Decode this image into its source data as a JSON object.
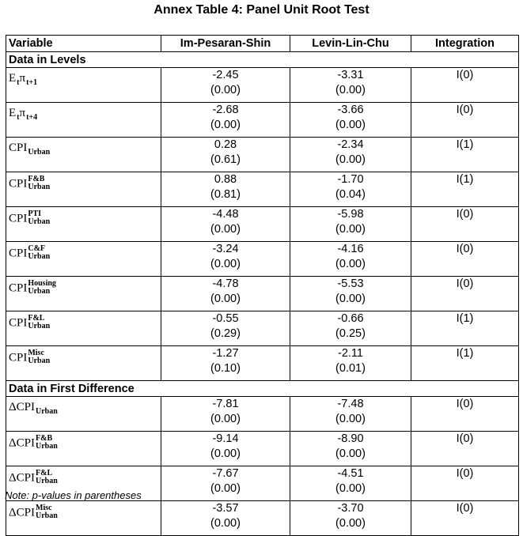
{
  "title": "Annex Table 4: Panel Unit Root Test",
  "table": {
    "columns": [
      "Variable",
      "Im-Pesaran-Shin",
      "Levin-Lin-Chu",
      "Integration"
    ],
    "sections": [
      {
        "label": "Data in Levels",
        "rows": [
          {
            "variable": [
              {
                "text": "E",
                "sub": "t"
              },
              {
                "text": "π",
                "sub": "t+1"
              }
            ],
            "ips": [
              "-2.45",
              "(0.00)"
            ],
            "llc": [
              "-3.31",
              "(0.00)"
            ],
            "integration": "I(0)"
          },
          {
            "variable": [
              {
                "text": "E",
                "sub": "t"
              },
              {
                "text": "π",
                "sub": "t+4"
              }
            ],
            "ips": [
              "-2.68",
              "(0.00)"
            ],
            "llc": [
              "-3.66",
              "(0.00)"
            ],
            "integration": "I(0)"
          },
          {
            "variable": [
              {
                "text": "CPI",
                "sub": "Urban"
              }
            ],
            "ips": [
              "0.28",
              "(0.61)"
            ],
            "llc": [
              "-2.34",
              "(0.00)"
            ],
            "integration": "I(1)"
          },
          {
            "variable": [
              {
                "text": "CPI",
                "sup": "F&B",
                "sub": "Urban"
              }
            ],
            "ips": [
              "0.88",
              "(0.81)"
            ],
            "llc": [
              "-1.70",
              "(0.04)"
            ],
            "integration": "I(1)"
          },
          {
            "variable": [
              {
                "text": "CPI",
                "sup": "PTI",
                "sub": "Urban"
              }
            ],
            "ips": [
              "-4.48",
              "(0.00)"
            ],
            "llc": [
              "-5.98",
              "(0.00)"
            ],
            "integration": "I(0)"
          },
          {
            "variable": [
              {
                "text": "CPI",
                "sup": "C&F",
                "sub": "Urban"
              }
            ],
            "ips": [
              "-3.24",
              "(0.00)"
            ],
            "llc": [
              "-4.16",
              "(0.00)"
            ],
            "integration": "I(0)"
          },
          {
            "variable": [
              {
                "text": "CPI",
                "sup": "Housing",
                "sub": "Urban"
              }
            ],
            "ips": [
              "-4.78",
              "(0.00)"
            ],
            "llc": [
              "-5.53",
              "(0.00)"
            ],
            "integration": "I(0)"
          },
          {
            "variable": [
              {
                "text": "CPI",
                "sup": "F&L",
                "sub": "Urban"
              }
            ],
            "ips": [
              "-0.55",
              "(0.29)"
            ],
            "llc": [
              "-0.66",
              "(0.25)"
            ],
            "integration": "I(1)"
          },
          {
            "variable": [
              {
                "text": "CPI",
                "sup": "Misc",
                "sub": "Urban"
              }
            ],
            "ips": [
              "-1.27",
              "(0.10)"
            ],
            "llc": [
              "-2.11",
              "(0.01)"
            ],
            "integration": "I(1)"
          }
        ]
      },
      {
        "label": "Data in First Difference",
        "rows": [
          {
            "variable": [
              {
                "text": "ΔCPI",
                "sub": "Urban"
              }
            ],
            "ips": [
              "-7.81",
              "(0.00)"
            ],
            "llc": [
              "-7.48",
              "(0.00)"
            ],
            "integration": "I(0)"
          },
          {
            "variable": [
              {
                "text": "ΔCPI",
                "sup": "F&B",
                "sub": "Urban"
              }
            ],
            "ips": [
              "-9.14",
              "(0.00)"
            ],
            "llc": [
              "-8.90",
              "(0.00)"
            ],
            "integration": "I(0)"
          },
          {
            "variable": [
              {
                "text": "ΔCPI",
                "sup": "F&L",
                "sub": "Urban"
              }
            ],
            "ips": [
              "-7.67",
              "(0.00)"
            ],
            "llc": [
              "-4.51",
              "(0.00)"
            ],
            "integration": "I(0)"
          },
          {
            "variable": [
              {
                "text": "ΔCPI",
                "sup": "Misc",
                "sub": "Urban"
              }
            ],
            "ips": [
              "-3.57",
              "(0.00)"
            ],
            "llc": [
              "-3.70",
              "(0.00)"
            ],
            "integration": "I(0)"
          }
        ]
      }
    ]
  },
  "note": "Note: p-values in parentheses"
}
